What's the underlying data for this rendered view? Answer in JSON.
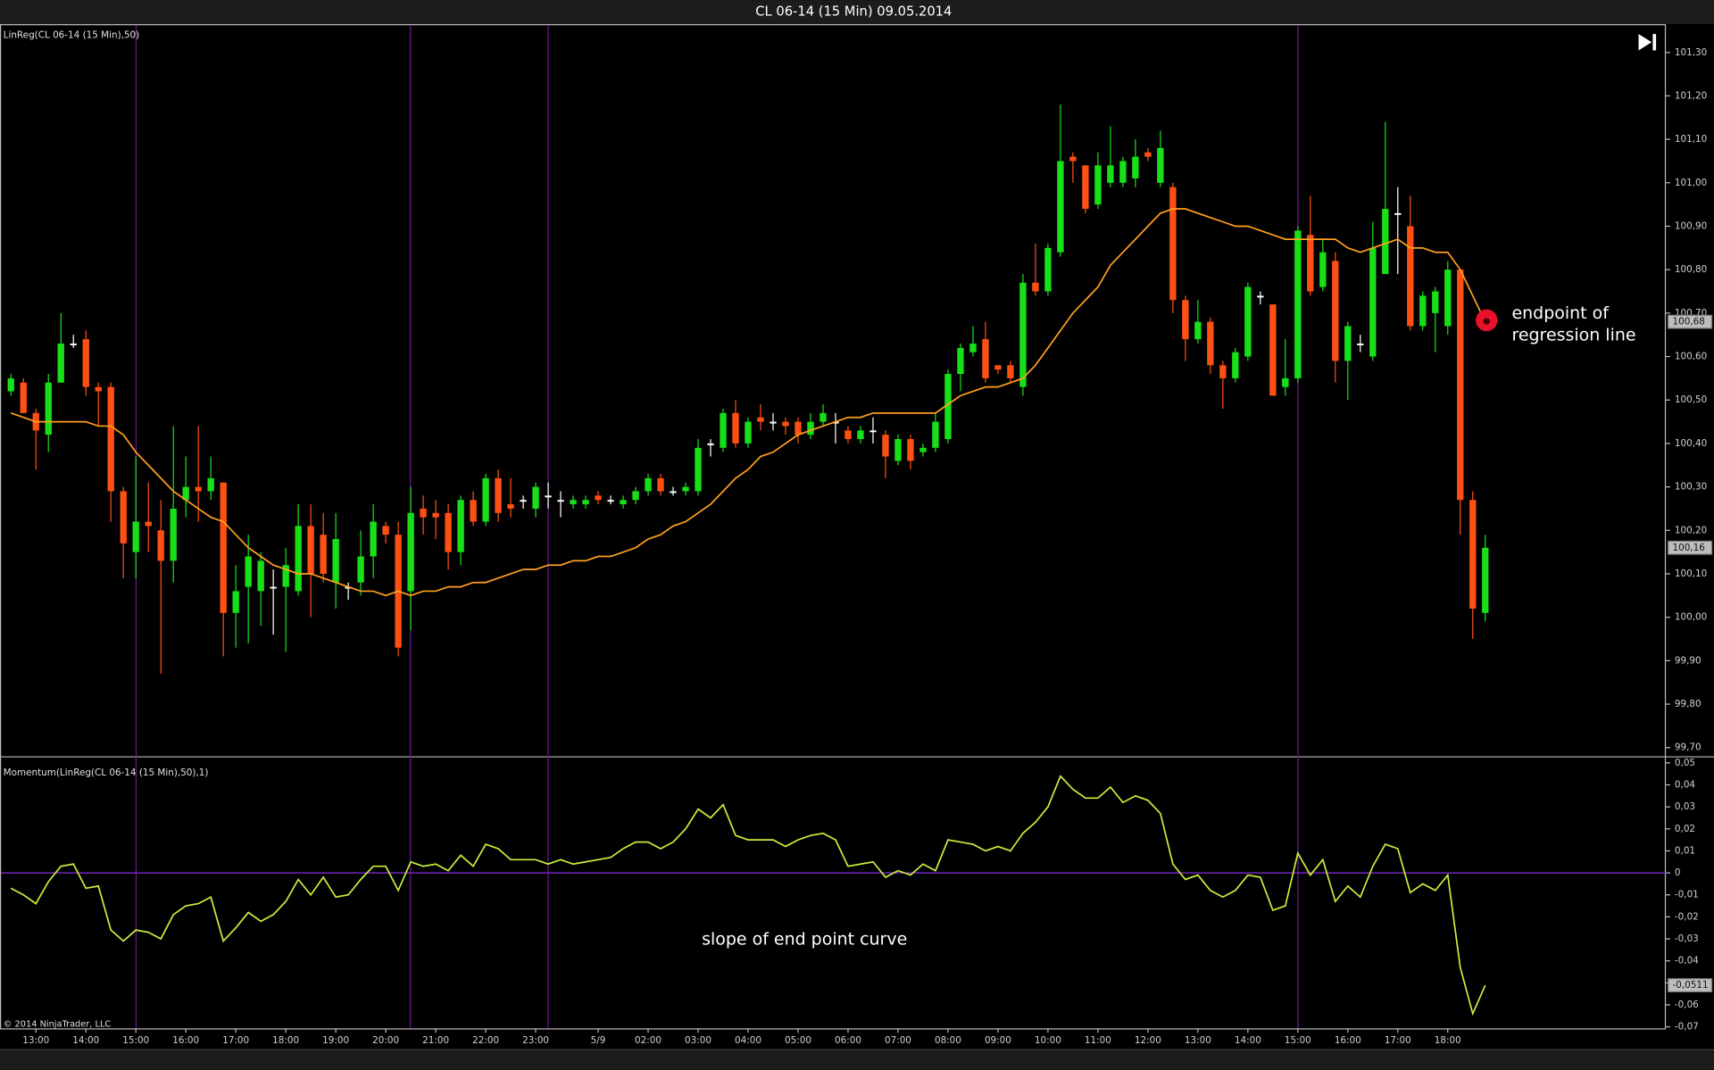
{
  "title": "CL 06-14 (15 Min)  09.05.2014",
  "copyright": "© 2014 NinjaTrader, LLC",
  "chart_data": [
    {
      "type": "candlestick",
      "label": "LinReg(CL 06-14 (15 Min),50)",
      "up_color": "#18e018",
      "down_color": "#ff5014",
      "doji_color": "#ffffff",
      "open": [
        100.52,
        100.54,
        100.47,
        100.42,
        100.54,
        100.63,
        100.64,
        100.53,
        100.53,
        100.29,
        100.15,
        100.22,
        100.2,
        100.13,
        100.27,
        100.3,
        100.29,
        100.31,
        100.01,
        100.07,
        100.06,
        100.07,
        100.07,
        100.06,
        100.21,
        100.19,
        100.08,
        100.07,
        100.08,
        100.14,
        100.21,
        100.19,
        100.06,
        100.25,
        100.24,
        100.24,
        100.15,
        100.27,
        100.22,
        100.32,
        100.26,
        100.27,
        100.25,
        100.28,
        100.27,
        100.26,
        100.26,
        100.28,
        100.27,
        100.26,
        100.27,
        100.29,
        100.32,
        100.29,
        100.29,
        100.29,
        100.4,
        100.39,
        100.47,
        100.4,
        100.46,
        100.45,
        100.45,
        100.45,
        100.42,
        100.45,
        100.45,
        100.43,
        100.41,
        100.43,
        100.42,
        100.36,
        100.41,
        100.38,
        100.39,
        100.41,
        100.56,
        100.61,
        100.64,
        100.58,
        100.58,
        100.53,
        100.77,
        100.75,
        100.84,
        101.06,
        101.04,
        100.95,
        101.0,
        101.0,
        101.01,
        101.07,
        101.0,
        100.99,
        100.73,
        100.64,
        100.68,
        100.58,
        100.55,
        100.6,
        100.74,
        100.72,
        100.53,
        100.55,
        100.88,
        100.76,
        100.82,
        100.59,
        100.63,
        100.6,
        100.79,
        100.93,
        100.9,
        100.67,
        100.7,
        100.67,
        100.8,
        100.27,
        100.01
      ],
      "high": [
        100.56,
        100.55,
        100.48,
        100.56,
        100.7,
        100.65,
        100.66,
        100.54,
        100.54,
        100.3,
        100.37,
        100.31,
        100.27,
        100.44,
        100.37,
        100.44,
        100.37,
        100.31,
        100.12,
        100.19,
        100.15,
        100.11,
        100.16,
        100.26,
        100.26,
        100.24,
        100.24,
        100.08,
        100.2,
        100.26,
        100.22,
        100.22,
        100.3,
        100.28,
        100.27,
        100.26,
        100.28,
        100.29,
        100.33,
        100.34,
        100.32,
        100.28,
        100.31,
        100.31,
        100.29,
        100.28,
        100.28,
        100.29,
        100.28,
        100.28,
        100.3,
        100.33,
        100.33,
        100.3,
        100.31,
        100.41,
        100.41,
        100.48,
        100.5,
        100.46,
        100.49,
        100.47,
        100.46,
        100.46,
        100.47,
        100.49,
        100.47,
        100.44,
        100.44,
        100.46,
        100.43,
        100.42,
        100.42,
        100.4,
        100.47,
        100.57,
        100.63,
        100.67,
        100.68,
        100.58,
        100.59,
        100.79,
        100.86,
        100.86,
        101.18,
        101.07,
        101.04,
        101.07,
        101.13,
        101.06,
        101.1,
        101.08,
        101.12,
        101.0,
        100.74,
        100.73,
        100.69,
        100.59,
        100.62,
        100.77,
        100.75,
        100.72,
        100.64,
        100.9,
        100.97,
        100.87,
        100.84,
        100.68,
        100.65,
        100.91,
        101.14,
        100.99,
        100.97,
        100.75,
        100.76,
        100.82,
        100.8,
        100.29,
        100.19
      ],
      "low": [
        100.51,
        100.47,
        100.34,
        100.38,
        100.54,
        100.62,
        100.51,
        100.44,
        100.22,
        100.09,
        100.09,
        100.15,
        99.87,
        100.08,
        100.23,
        100.22,
        100.27,
        99.91,
        99.93,
        99.94,
        99.98,
        99.96,
        99.92,
        100.05,
        100.0,
        100.08,
        100.02,
        100.04,
        100.05,
        100.09,
        100.17,
        99.91,
        99.97,
        100.19,
        100.18,
        100.11,
        100.12,
        100.21,
        100.21,
        100.22,
        100.23,
        100.25,
        100.23,
        100.25,
        100.23,
        100.25,
        100.25,
        100.26,
        100.26,
        100.25,
        100.26,
        100.28,
        100.28,
        100.28,
        100.28,
        100.28,
        100.37,
        100.38,
        100.39,
        100.39,
        100.43,
        100.43,
        100.42,
        100.4,
        100.41,
        100.44,
        100.4,
        100.4,
        100.4,
        100.4,
        100.32,
        100.35,
        100.34,
        100.37,
        100.38,
        100.4,
        100.52,
        100.6,
        100.54,
        100.56,
        100.54,
        100.51,
        100.74,
        100.74,
        100.83,
        101.0,
        100.93,
        100.94,
        100.99,
        100.99,
        100.99,
        101.05,
        100.99,
        100.7,
        100.59,
        100.63,
        100.56,
        100.48,
        100.54,
        100.59,
        100.72,
        100.51,
        100.51,
        100.54,
        100.74,
        100.75,
        100.54,
        100.5,
        100.61,
        100.59,
        100.79,
        100.79,
        100.66,
        100.66,
        100.61,
        100.65,
        100.19,
        99.95,
        99.99
      ],
      "close": [
        100.55,
        100.47,
        100.43,
        100.54,
        100.63,
        100.63,
        100.53,
        100.52,
        100.29,
        100.17,
        100.22,
        100.21,
        100.13,
        100.25,
        100.3,
        100.29,
        100.32,
        100.01,
        100.06,
        100.14,
        100.13,
        100.07,
        100.12,
        100.21,
        100.1,
        100.1,
        100.18,
        100.07,
        100.14,
        100.22,
        100.19,
        99.93,
        100.24,
        100.23,
        100.23,
        100.15,
        100.27,
        100.22,
        100.32,
        100.24,
        100.25,
        100.27,
        100.3,
        100.28,
        100.27,
        100.27,
        100.27,
        100.27,
        100.27,
        100.27,
        100.29,
        100.32,
        100.29,
        100.29,
        100.3,
        100.39,
        100.4,
        100.47,
        100.4,
        100.45,
        100.45,
        100.45,
        100.44,
        100.42,
        100.45,
        100.47,
        100.45,
        100.41,
        100.43,
        100.43,
        100.37,
        100.41,
        100.36,
        100.39,
        100.45,
        100.56,
        100.62,
        100.63,
        100.55,
        100.57,
        100.55,
        100.77,
        100.75,
        100.85,
        101.05,
        101.05,
        100.94,
        101.04,
        101.04,
        101.05,
        101.06,
        101.06,
        101.08,
        100.73,
        100.64,
        100.68,
        100.58,
        100.55,
        100.61,
        100.76,
        100.74,
        100.51,
        100.55,
        100.89,
        100.75,
        100.84,
        100.59,
        100.67,
        100.63,
        100.85,
        100.94,
        100.93,
        100.67,
        100.74,
        100.75,
        100.8,
        100.27,
        100.02,
        100.16
      ],
      "last_close_label": "100,16",
      "series": [
        {
          "name": "LinReg(CL 06-14 (15 Min),50)",
          "color": "#ffa020",
          "last_value_label": "100,68",
          "values": [
            100.47,
            100.46,
            100.45,
            100.45,
            100.45,
            100.45,
            100.45,
            100.44,
            100.44,
            100.42,
            100.38,
            100.35,
            100.32,
            100.29,
            100.27,
            100.25,
            100.23,
            100.22,
            100.19,
            100.16,
            100.14,
            100.12,
            100.11,
            100.1,
            100.1,
            100.09,
            100.08,
            100.07,
            100.06,
            100.06,
            100.05,
            100.06,
            100.05,
            100.06,
            100.06,
            100.07,
            100.07,
            100.08,
            100.08,
            100.09,
            100.1,
            100.11,
            100.11,
            100.12,
            100.12,
            100.13,
            100.13,
            100.14,
            100.14,
            100.15,
            100.16,
            100.18,
            100.19,
            100.21,
            100.22,
            100.24,
            100.26,
            100.29,
            100.32,
            100.34,
            100.37,
            100.38,
            100.4,
            100.42,
            100.43,
            100.44,
            100.45,
            100.46,
            100.46,
            100.47,
            100.47,
            100.47,
            100.47,
            100.47,
            100.47,
            100.49,
            100.51,
            100.52,
            100.53,
            100.53,
            100.54,
            100.55,
            100.58,
            100.62,
            100.66,
            100.7,
            100.73,
            100.76,
            100.81,
            100.84,
            100.87,
            100.9,
            100.93,
            100.94,
            100.94,
            100.93,
            100.92,
            100.91,
            100.9,
            100.9,
            100.89,
            100.88,
            100.87,
            100.87,
            100.87,
            100.87,
            100.87,
            100.85,
            100.84,
            100.85,
            100.86,
            100.87,
            100.85,
            100.85,
            100.84,
            100.84,
            100.8,
            100.74,
            100.68
          ]
        }
      ],
      "annotation": [
        "endpoint of",
        "regression line"
      ],
      "ylim": [
        99.68,
        101.345
      ],
      "yticks": [
        {
          "value": 101.3,
          "label": "101,30"
        },
        {
          "value": 101.2,
          "label": "101,20"
        },
        {
          "value": 101.1,
          "label": "101,10"
        },
        {
          "value": 101.0,
          "label": "101,00"
        },
        {
          "value": 100.9,
          "label": "100,90"
        },
        {
          "value": 100.8,
          "label": "100,80"
        },
        {
          "value": 100.7,
          "label": "100,70"
        },
        {
          "value": 100.6,
          "label": "100,60"
        },
        {
          "value": 100.5,
          "label": "100,50"
        },
        {
          "value": 100.4,
          "label": "100,40"
        },
        {
          "value": 100.3,
          "label": "100,30"
        },
        {
          "value": 100.2,
          "label": "100,20"
        },
        {
          "value": 100.1,
          "label": "100,10"
        },
        {
          "value": 100.0,
          "label": "100,00"
        },
        {
          "value": 99.9,
          "label": "99,90"
        },
        {
          "value": 99.8,
          "label": "99,80"
        },
        {
          "value": 99.7,
          "label": "99,70"
        }
      ]
    },
    {
      "type": "line",
      "label": "Momentum(LinReg(CL 06-14 (15 Min),50),1)",
      "categories": [
        null,
        null,
        "13:00",
        null,
        null,
        null,
        "14:00",
        null,
        null,
        null,
        "15:00",
        null,
        null,
        null,
        "16:00",
        null,
        null,
        null,
        "17:00",
        null,
        null,
        null,
        "18:00",
        null,
        null,
        null,
        "19:00",
        null,
        null,
        null,
        "20:00",
        null,
        null,
        null,
        "21:00",
        null,
        null,
        null,
        "22:00",
        null,
        null,
        null,
        "23:00",
        null,
        null,
        null,
        null,
        "5/9",
        null,
        null,
        null,
        "02:00",
        null,
        null,
        null,
        "03:00",
        null,
        null,
        null,
        "04:00",
        null,
        null,
        null,
        "05:00",
        null,
        null,
        null,
        "06:00",
        null,
        null,
        null,
        "07:00",
        null,
        null,
        null,
        "08:00",
        null,
        null,
        null,
        "09:00",
        null,
        null,
        null,
        "10:00",
        null,
        null,
        null,
        "11:00",
        null,
        null,
        null,
        "12:00",
        null,
        null,
        null,
        "13:00",
        null,
        null,
        null,
        "14:00",
        null,
        null,
        null,
        "15:00",
        null,
        null,
        null,
        "16:00",
        null,
        null,
        null,
        "17:00",
        null,
        null,
        null,
        "18:00",
        null,
        null,
        null
      ],
      "series": [
        {
          "name": "Momentum(LinReg(CL 06-14 (15 Min),50),1)",
          "color": "#c8f03c",
          "last_value_label": "-0,0511",
          "values": [
            -0.007,
            -0.01,
            -0.014,
            -0.004,
            0.003,
            0.004,
            -0.007,
            -0.006,
            -0.026,
            -0.031,
            -0.026,
            -0.027,
            -0.03,
            -0.019,
            -0.015,
            -0.014,
            -0.011,
            -0.031,
            -0.025,
            -0.018,
            -0.022,
            -0.019,
            -0.013,
            -0.003,
            -0.01,
            -0.002,
            -0.011,
            -0.01,
            -0.003,
            0.003,
            0.003,
            -0.008,
            0.005,
            0.003,
            0.004,
            0.001,
            0.008,
            0.003,
            0.013,
            0.011,
            0.006,
            0.006,
            0.006,
            0.004,
            0.006,
            0.004,
            0.005,
            0.006,
            0.007,
            0.011,
            0.014,
            0.014,
            0.011,
            0.014,
            0.02,
            0.029,
            0.025,
            0.031,
            0.017,
            0.015,
            0.015,
            0.015,
            0.012,
            0.015,
            0.017,
            0.018,
            0.015,
            0.003,
            0.004,
            0.005,
            -0.002,
            0.001,
            -0.001,
            0.004,
            0.001,
            0.015,
            0.014,
            0.013,
            0.01,
            0.012,
            0.01,
            0.018,
            0.023,
            0.03,
            0.044,
            0.038,
            0.034,
            0.034,
            0.039,
            0.032,
            0.035,
            0.033,
            0.027,
            0.004,
            -0.003,
            -0.001,
            -0.008,
            -0.011,
            -0.008,
            -0.001,
            -0.002,
            -0.017,
            -0.015,
            0.009,
            -0.001,
            0.006,
            -0.013,
            -0.006,
            -0.011,
            0.003,
            0.013,
            0.011,
            -0.009,
            -0.005,
            -0.008,
            -0.001,
            -0.043,
            -0.064,
            -0.0511
          ]
        }
      ],
      "annotation": "slope of end point curve",
      "zero_line_color": "#8a2be2",
      "ylim": [
        -0.0707,
        0.053
      ],
      "yticks": [
        {
          "value": 0.05,
          "label": "0,05"
        },
        {
          "value": 0.04,
          "label": "0,04"
        },
        {
          "value": 0.03,
          "label": "0,03"
        },
        {
          "value": 0.02,
          "label": "0,02"
        },
        {
          "value": 0.01,
          "label": "0,01"
        },
        0,
        {
          "value": -0.01,
          "label": "-0,01"
        },
        {
          "value": -0.02,
          "label": "-0,02"
        },
        {
          "value": -0.03,
          "label": "-0,03"
        },
        {
          "value": -0.04,
          "label": "-0,04"
        },
        {
          "value": -0.05,
          "label": "-0,05"
        },
        {
          "value": -0.06,
          "label": "-0,06"
        },
        {
          "value": -0.07,
          "label": "-0,07"
        }
      ]
    }
  ]
}
